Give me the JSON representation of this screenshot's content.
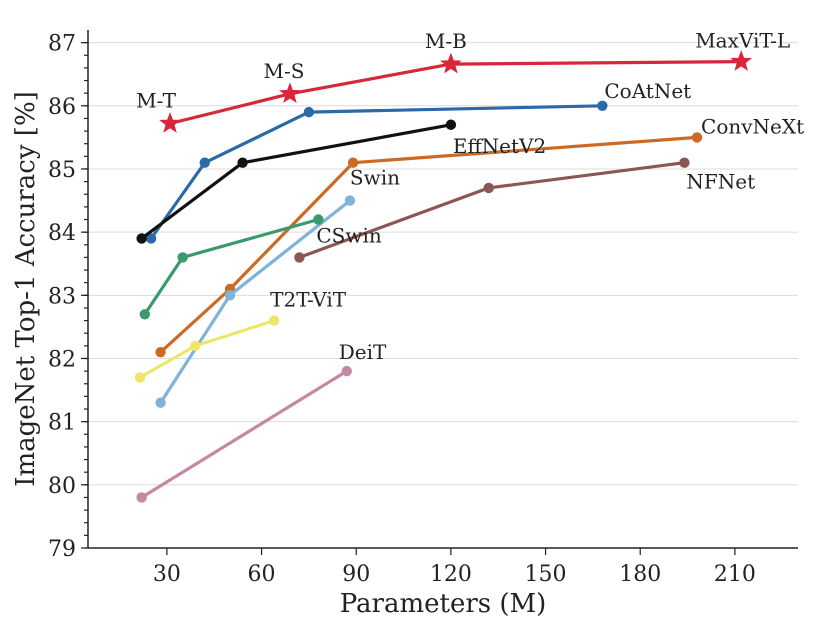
{
  "chart_data": {
    "type": "line",
    "title": "",
    "xlabel": "Parameters (M)",
    "ylabel": "ImageNet Top-1 Accuracy [%]",
    "xlim": [
      5,
      230
    ],
    "ylim": [
      79,
      87.2
    ],
    "xticks": [
      30,
      60,
      90,
      120,
      150,
      180,
      210
    ],
    "yticks": [
      79,
      80,
      81,
      82,
      83,
      84,
      85,
      86,
      87
    ],
    "grid": "horizontal",
    "series": [
      {
        "name": "MaxViT",
        "color": "#d62839",
        "marker": "star",
        "x": [
          31,
          69,
          120,
          212
        ],
        "y": [
          85.72,
          86.19,
          86.66,
          86.7
        ],
        "point_labels": [
          "M-T",
          "M-S",
          "M-B",
          "MaxViT-L"
        ]
      },
      {
        "name": "CoAtNet",
        "color": "#2b6aa8",
        "marker": "circle",
        "x": [
          25,
          42,
          75,
          168
        ],
        "y": [
          83.9,
          85.1,
          85.9,
          86.0
        ]
      },
      {
        "name": "EffNetV2",
        "color": "#111111",
        "marker": "circle",
        "x": [
          22,
          54,
          120
        ],
        "y": [
          83.9,
          85.1,
          85.7
        ]
      },
      {
        "name": "ConvNeXt",
        "color": "#cc6a24",
        "marker": "circle",
        "x": [
          28,
          50,
          89,
          198
        ],
        "y": [
          82.1,
          83.1,
          85.1,
          85.5
        ]
      },
      {
        "name": "NFNet",
        "color": "#8c5654",
        "marker": "circle",
        "x": [
          72,
          132,
          194
        ],
        "y": [
          83.6,
          84.7,
          85.1
        ]
      },
      {
        "name": "Swin",
        "color": "#7fb3d8",
        "marker": "circle",
        "x": [
          28,
          50,
          88
        ],
        "y": [
          81.3,
          83.0,
          84.5
        ]
      },
      {
        "name": "CSwin",
        "color": "#3a9a6e",
        "marker": "circle",
        "x": [
          23,
          35,
          78
        ],
        "y": [
          82.7,
          83.6,
          84.2
        ]
      },
      {
        "name": "T2T-ViT",
        "color": "#ede66a",
        "marker": "circle",
        "x": [
          21.5,
          39,
          64
        ],
        "y": [
          81.7,
          82.2,
          82.6
        ]
      },
      {
        "name": "DeiT",
        "color": "#c488a2",
        "marker": "circle",
        "x": [
          22,
          87
        ],
        "y": [
          79.8,
          81.8
        ]
      }
    ],
    "labels": [
      {
        "text": "MaxViT-L",
        "x": 212,
        "y": 86.7
      },
      {
        "text": "CoAtNet",
        "x": 168,
        "y": 86.0
      },
      {
        "text": "EffNetV2",
        "x": 120,
        "y": 85.7
      },
      {
        "text": "ConvNeXt",
        "x": 198,
        "y": 85.5
      },
      {
        "text": "NFNet",
        "x": 194,
        "y": 85.1
      },
      {
        "text": "Swin",
        "x": 88,
        "y": 84.5
      },
      {
        "text": "CSwin",
        "x": 78,
        "y": 84.2
      },
      {
        "text": "T2T-ViT",
        "x": 64,
        "y": 82.6
      },
      {
        "text": "DeiT",
        "x": 87,
        "y": 81.8
      }
    ]
  }
}
